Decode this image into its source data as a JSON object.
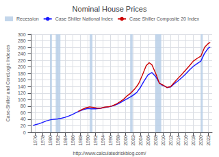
{
  "chart_data": {
    "type": "line",
    "title": "Nominal House Prices",
    "y_label": "Case-Shiller and CoreLogic Indexes",
    "annotations": [
      "http://www.calculatedriskblog.com/"
    ],
    "xlim": [
      1975,
      2023
    ],
    "xticks": [
      1976,
      1978,
      1980,
      1982,
      1984,
      1986,
      1988,
      1990,
      1992,
      1994,
      1996,
      1998,
      2000,
      2002,
      2004,
      2006,
      2008,
      2010,
      2012,
      2014,
      2016,
      2018,
      2020,
      2022
    ],
    "ylim": [
      0,
      300
    ],
    "yticks": [
      0,
      20,
      40,
      60,
      80,
      100,
      120,
      140,
      160,
      180,
      200,
      220,
      240,
      260,
      280,
      300
    ],
    "grid": true,
    "legend": "top",
    "bands": {
      "name": "Recession",
      "color": "#b8cfe8",
      "ranges": [
        [
          1980.0,
          1980.5
        ],
        [
          1981.5,
          1982.75
        ],
        [
          1990.5,
          1991.25
        ],
        [
          2001.25,
          2001.9
        ],
        [
          2007.9,
          2009.5
        ],
        [
          2020.0,
          2020.5
        ]
      ]
    },
    "series": [
      {
        "name": "Case Shiller National Index",
        "color": "#1a1aff",
        "x": [
          1975.5,
          1976.0,
          1977.0,
          1978.0,
          1979.0,
          1980.0,
          1981.0,
          1982.0,
          1983.0,
          1984.0,
          1985.0,
          1986.0,
          1987.0,
          1988.0,
          1989.0,
          1990.0,
          1991.0,
          1992.0,
          1993.0,
          1994.0,
          1995.0,
          1996.0,
          1997.0,
          1998.0,
          1999.0,
          2000.0,
          2001.0,
          2002.0,
          2003.0,
          2004.0,
          2005.0,
          2006.0,
          2007.0,
          2008.0,
          2009.0,
          2009.75,
          2010.5,
          2011.0,
          2012.0,
          2013.0,
          2014.0,
          2015.0,
          2016.0,
          2017.0,
          2018.0,
          2019.0,
          2020.0,
          2021.0,
          2022.0,
          2022.5
        ],
        "values": [
          21,
          23,
          26,
          30,
          35,
          38,
          40,
          41,
          43,
          46,
          50,
          55,
          61,
          66,
          70,
          73,
          72,
          72,
          73,
          75,
          77,
          79,
          82,
          87,
          93,
          100,
          106,
          113,
          122,
          138,
          158,
          176,
          183,
          171,
          151,
          144,
          141,
          137,
          139,
          149,
          158,
          168,
          179,
          191,
          202,
          210,
          218,
          242,
          258,
          261
        ]
      },
      {
        "name": "Case Shiller Composite 20 Index",
        "color": "#cc0000",
        "x": [
          1987.5,
          1988.5,
          1989.5,
          1990.5,
          1991.5,
          1992.5,
          1993.5,
          1994.5,
          1995.5,
          1996.5,
          1997.5,
          1998.5,
          1999.5,
          2000.5,
          2001.5,
          2002.5,
          2003.5,
          2004.5,
          2005.5,
          2006.3,
          2007.0,
          2008.0,
          2009.0,
          2009.75,
          2010.5,
          2011.0,
          2012.0,
          2013.0,
          2014.0,
          2015.0,
          2016.0,
          2017.0,
          2018.0,
          2019.0,
          2020.0,
          2021.0,
          2022.0,
          2022.5
        ],
        "values": [
          64,
          70,
          75,
          78,
          76,
          74,
          74,
          77,
          78,
          81,
          86,
          93,
          101,
          112,
          121,
          133,
          149,
          175,
          204,
          213,
          207,
          181,
          150,
          146,
          141,
          137,
          140,
          153,
          166,
          178,
          191,
          204,
          218,
          226,
          233,
          260,
          272,
          275
        ]
      }
    ]
  }
}
